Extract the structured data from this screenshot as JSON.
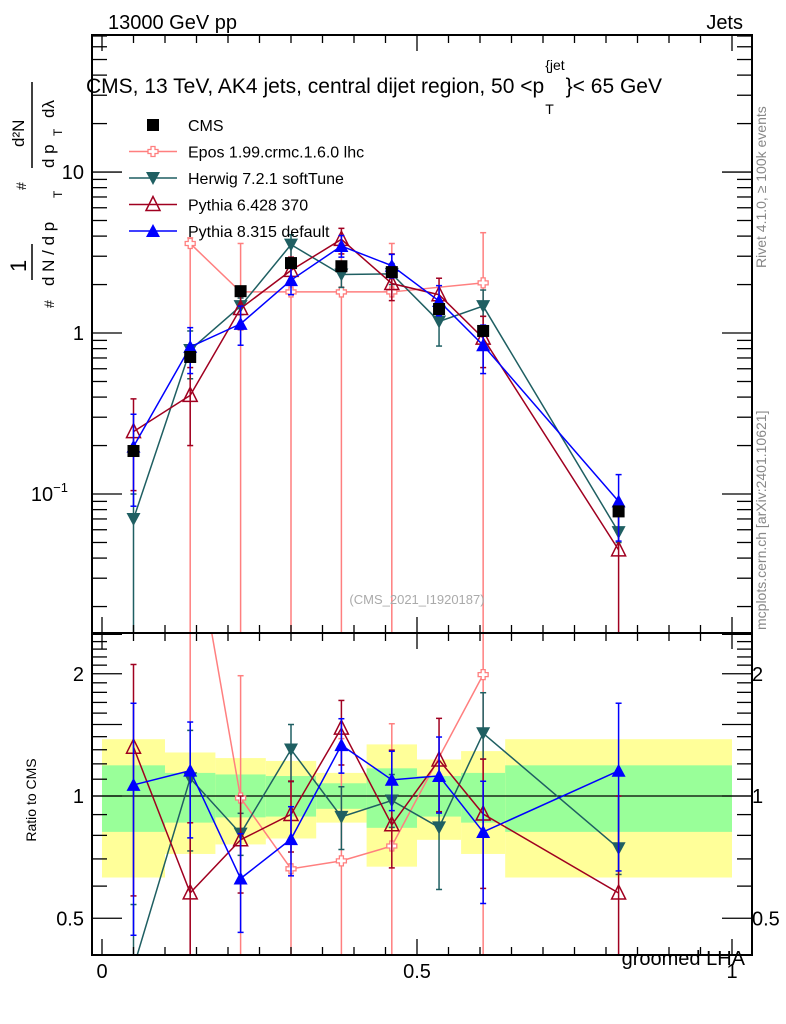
{
  "header": {
    "left": "13000 GeV pp",
    "right": "Jets"
  },
  "side_labels": {
    "top": "Rivet 4.1.0, ≥ 100k events",
    "bottom": "mcplots.cern.ch [arXiv:2401.10621]"
  },
  "chart_data": {
    "type": "scatter",
    "title": "CMS, 13 TeV, AK4 jets, central dijet region, 50 <p",
    "title_sup": "{jet",
    "title_sub": "T",
    "title_end": "}< 65 GeV",
    "watermark": "(CMS_2021_I1920187)",
    "xlabel": "groomed LHA",
    "ylabel_parts": [
      "1",
      "d N / d p",
      "T",
      "#",
      "d²N",
      "d p",
      "T",
      "dλ",
      "#"
    ],
    "ratio_ylabel": "Ratio to CMS",
    "xlim": [
      0,
      1
    ],
    "ylim": [
      0.0137,
      71
    ],
    "ylog": true,
    "ratio_ylim": [
      0.406,
      2.52
    ],
    "ratio_ylog": true,
    "x_ticks": [
      "0",
      "0.5",
      "1"
    ],
    "x_tick_values": [
      0,
      0.5,
      1
    ],
    "y_ticks": [
      {
        "v": 10,
        "label": "10"
      },
      {
        "v": 1,
        "label": "1"
      },
      {
        "v": 0.1,
        "label": "10",
        "sup": "−1"
      }
    ],
    "ratio_ticks": [
      {
        "v": 2,
        "label": "2"
      },
      {
        "v": 1,
        "label": "1"
      },
      {
        "v": 0.5,
        "label": "0.5"
      }
    ],
    "bin_edges": [
      0,
      0.1,
      0.18,
      0.26,
      0.34,
      0.42,
      0.5,
      0.57,
      0.64,
      1.0
    ],
    "x": [
      0.05,
      0.14,
      0.22,
      0.3,
      0.38,
      0.46,
      0.535,
      0.605,
      0.82
    ],
    "band_yellow": [
      [
        0.63,
        1.38
      ],
      [
        0.72,
        1.28
      ],
      [
        0.76,
        1.24
      ],
      [
        0.786,
        1.22
      ],
      [
        0.86,
        1.14
      ],
      [
        0.67,
        1.34
      ],
      [
        0.78,
        1.23
      ],
      [
        0.72,
        1.29
      ],
      [
        0.63,
        1.38
      ]
    ],
    "band_green": [
      [
        0.816,
        1.19
      ],
      [
        0.86,
        1.14
      ],
      [
        0.886,
        1.13
      ],
      [
        0.89,
        1.12
      ],
      [
        0.93,
        1.075
      ],
      [
        0.835,
        1.17
      ],
      [
        0.89,
        1.12
      ],
      [
        0.86,
        1.14
      ],
      [
        0.816,
        1.19
      ]
    ],
    "legend_position": "top-left",
    "data": {
      "name": "CMS",
      "color": "#000000",
      "values": [
        0.185,
        0.71,
        1.82,
        2.72,
        2.6,
        2.39,
        1.41,
        1.03,
        0.078
      ]
    },
    "series": [
      {
        "name": "Epos 1.99.crmc.1.6.0 lhc",
        "color": "#ff7f7f",
        "marker": "cross-open",
        "values": [
          null,
          3.6,
          1.8,
          1.8,
          1.8,
          1.8,
          null,
          2.05,
          null
        ],
        "err": [
          null,
          [
            0.005,
            3.9
          ],
          [
            0.005,
            3.6
          ],
          [
            0.005,
            3.6
          ],
          [
            0.005,
            3.6
          ],
          [
            0.005,
            3.6
          ],
          null,
          [
            0.005,
            4.2
          ],
          null
        ]
      },
      {
        "name": "Herwig 7.2.1 softTune",
        "color": "#1f5f62",
        "marker": "triangle-down",
        "values": [
          0.07,
          0.785,
          1.47,
          3.54,
          2.31,
          2.33,
          1.18,
          1.47,
          0.058
        ],
        "err": [
          [
            0.005,
            0.1
          ],
          [
            0.52,
            1.03
          ],
          [
            1.3,
            1.65
          ],
          [
            2.95,
            4.08
          ],
          [
            1.92,
            2.74
          ],
          [
            2.0,
            2.7
          ],
          [
            0.83,
            1.56
          ],
          [
            1.27,
            1.85
          ],
          [
            0.05,
            0.078
          ]
        ]
      },
      {
        "name": "Pythia 6.428 370",
        "color": "#a00020",
        "marker": "triangle-open",
        "values": [
          0.244,
          0.41,
          1.42,
          2.45,
          3.82,
          2.03,
          1.73,
          0.93,
          0.045
        ],
        "err": [
          [
            0.105,
            0.39
          ],
          [
            0.2,
            0.61
          ],
          [
            1.05,
            1.82
          ],
          [
            1.98,
            2.96
          ],
          [
            3.1,
            4.47
          ],
          [
            1.59,
            3.1
          ],
          [
            1.29,
            2.19
          ],
          [
            0.61,
            1.27
          ],
          [
            0.005,
            0.078
          ]
        ]
      },
      {
        "name": "Pythia 8.315 default",
        "color": "#0000ff",
        "marker": "triangle-up",
        "values": [
          0.197,
          0.82,
          1.14,
          2.13,
          3.47,
          2.62,
          1.58,
          0.84,
          0.09
        ],
        "err": [
          [
            0.084,
            0.313
          ],
          [
            0.56,
            1.08
          ],
          [
            0.84,
            1.47
          ],
          [
            1.73,
            2.56
          ],
          [
            2.96,
            4.03
          ],
          [
            2.2,
            3.08
          ],
          [
            1.28,
            1.97
          ],
          [
            0.56,
            1.12
          ],
          [
            0.051,
            0.132
          ]
        ]
      }
    ]
  }
}
